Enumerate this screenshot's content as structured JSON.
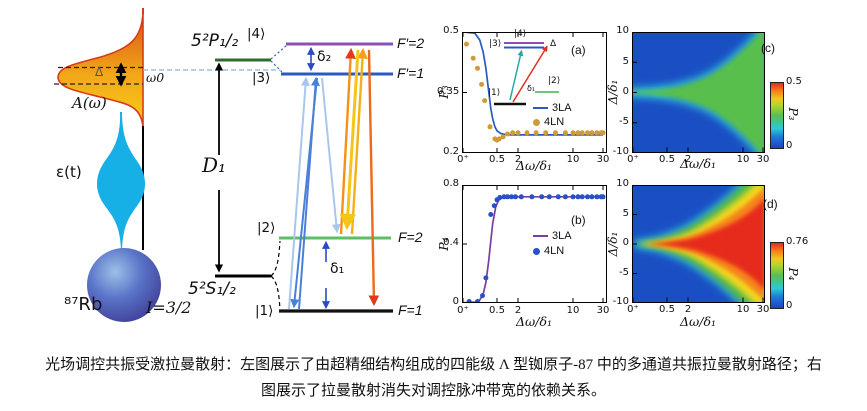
{
  "caption": {
    "line1": "光场调控共振受激拉曼散射：左图展示了由超精细结构组成的四能级 Λ 型铷原子-87 中的多通道共振拉曼散射路径；右",
    "line2": "图展示了拉曼散射消失对调控脉冲带宽的依赖关系。"
  },
  "left_diagram": {
    "spectrum_label": "A(ω)",
    "detuning_label": "Δ",
    "omega0_label": "ω0",
    "pulse_label": "ε(t)",
    "atom_label": "⁸⁷Rb",
    "nuclear_spin_label": "I=3/2",
    "upper_term_label": "5²P₁/₂",
    "lower_term_label": "5²S₁/₂",
    "d1_label": "D₁",
    "ket4": "|4⟩",
    "ket3": "|3⟩",
    "ket2": "|2⟩",
    "ket1": "|1⟩",
    "fprime2": "F′=2",
    "fprime1": "F′=1",
    "f2": "F=2",
    "f1": "F=1",
    "delta2_label": "δ₂",
    "delta1_label": "δ₁"
  },
  "panels": {
    "a": {
      "tag": "(a)",
      "ylabel": "P₃",
      "xlabel": "Δω/δ₁",
      "yticks": [
        "0.5",
        "0.35",
        "0.2"
      ],
      "xticks": [
        "0⁺",
        "0.5",
        "2",
        "10",
        "30"
      ],
      "legend": [
        {
          "label": "3LA"
        },
        {
          "label": "4LN"
        }
      ],
      "inset": {
        "ket4": "|4⟩",
        "ket3": "|3⟩",
        "ket2": "|2⟩",
        "ket1": "|1⟩",
        "delta1": "δ₁",
        "delta": "Δ"
      }
    },
    "b": {
      "tag": "(b)",
      "ylabel": "P₄",
      "xlabel": "Δω/δ₁",
      "yticks": [
        "0.8",
        "0.4",
        "0"
      ],
      "xticks": [
        "0⁺",
        "0.5",
        "2",
        "10",
        "30"
      ],
      "legend": [
        {
          "label": "3LA"
        },
        {
          "label": "4LN"
        }
      ]
    },
    "c": {
      "tag": "(c)",
      "ylabel": "Δ/δ₁",
      "xlabel": "Δω/δ₁",
      "yticks": [
        "10",
        "5",
        "0",
        "-5",
        "-10"
      ],
      "xticks": [
        "0⁺",
        "0.5",
        "2",
        "10",
        "30"
      ],
      "colorbar": {
        "max": "0.5",
        "min": "0",
        "label": "P₃"
      }
    },
    "d": {
      "tag": "(d)",
      "ylabel": "Δ/δ₁",
      "xlabel": "Δω/δ₁",
      "yticks": [
        "10",
        "5",
        "0",
        "-5",
        "-10"
      ],
      "xticks": [
        "0⁺",
        "0.5",
        "2",
        "10",
        "30"
      ],
      "colorbar": {
        "max": "0.76",
        "min": "0",
        "label": "P₄"
      }
    }
  },
  "chart_data": [
    {
      "type": "line+scatter",
      "panel": "(a)",
      "xlabel": "Δω/δ₁",
      "ylabel": "P₃",
      "xscale": "log-like",
      "xticks": [
        "0⁺",
        "0.5",
        "2",
        "10",
        "30"
      ],
      "ylim": [
        0.2,
        0.5
      ],
      "series": [
        {
          "name": "3LA",
          "kind": "line",
          "color": "#2b5abf",
          "points": [
            [
              0.03,
              0.5
            ],
            [
              0.08,
              0.497
            ],
            [
              0.12,
              0.48
            ],
            [
              0.16,
              0.45
            ],
            [
              0.2,
              0.41
            ],
            [
              0.25,
              0.355
            ],
            [
              0.3,
              0.31
            ],
            [
              0.35,
              0.285
            ],
            [
              0.42,
              0.265
            ],
            [
              0.5,
              0.255
            ],
            [
              0.65,
              0.248
            ],
            [
              0.85,
              0.246
            ],
            [
              1.2,
              0.245
            ],
            [
              2,
              0.245
            ],
            [
              4,
              0.245
            ],
            [
              8,
              0.245
            ],
            [
              15,
              0.245
            ],
            [
              30,
              0.245
            ]
          ]
        },
        {
          "name": "4LN",
          "kind": "scatter",
          "color": "#cf9b3a",
          "points": [
            [
              0.04,
              0.47
            ],
            [
              0.07,
              0.435
            ],
            [
              0.1,
              0.41
            ],
            [
              0.14,
              0.37
            ],
            [
              0.18,
              0.33
            ],
            [
              0.28,
              0.265
            ],
            [
              0.42,
              0.235
            ],
            [
              0.5,
              0.232
            ],
            [
              0.58,
              0.235
            ],
            [
              0.75,
              0.24
            ],
            [
              1,
              0.247
            ],
            [
              1.4,
              0.25
            ],
            [
              2,
              0.25
            ],
            [
              2.6,
              0.25
            ],
            [
              3.4,
              0.25
            ],
            [
              4.5,
              0.25
            ],
            [
              6,
              0.25
            ],
            [
              8,
              0.25
            ],
            [
              10,
              0.25
            ],
            [
              12,
              0.25
            ],
            [
              14,
              0.25
            ],
            [
              17,
              0.25
            ],
            [
              20,
              0.25
            ],
            [
              24,
              0.25
            ],
            [
              28,
              0.25
            ],
            [
              30,
              0.25
            ]
          ]
        }
      ]
    },
    {
      "type": "line+scatter",
      "panel": "(b)",
      "xlabel": "Δω/δ₁",
      "ylabel": "P₄",
      "xscale": "log-like",
      "xticks": [
        "0⁺",
        "0.5",
        "2",
        "10",
        "30"
      ],
      "ylim": [
        0,
        0.8
      ],
      "series": [
        {
          "name": "3LA",
          "kind": "line",
          "color": "#7a3ca0",
          "points": [
            [
              0.03,
              0.002
            ],
            [
              0.08,
              0.006
            ],
            [
              0.12,
              0.02
            ],
            [
              0.16,
              0.06
            ],
            [
              0.2,
              0.14
            ],
            [
              0.25,
              0.28
            ],
            [
              0.3,
              0.42
            ],
            [
              0.35,
              0.54
            ],
            [
              0.45,
              0.65
            ],
            [
              0.55,
              0.695
            ],
            [
              0.7,
              0.714
            ],
            [
              1,
              0.72
            ],
            [
              2,
              0.72
            ],
            [
              5,
              0.72
            ],
            [
              12,
              0.72
            ],
            [
              30,
              0.72
            ]
          ]
        },
        {
          "name": "4LN",
          "kind": "scatter",
          "color": "#2850c8",
          "points": [
            [
              0.05,
              0.01
            ],
            [
              0.1,
              0.01
            ],
            [
              0.15,
              0.05
            ],
            [
              0.2,
              0.17
            ],
            [
              0.3,
              0.6
            ],
            [
              0.4,
              0.66
            ],
            [
              0.5,
              0.7
            ],
            [
              0.6,
              0.715
            ],
            [
              0.8,
              0.72
            ],
            [
              1,
              0.72
            ],
            [
              1.3,
              0.72
            ],
            [
              1.7,
              0.72
            ],
            [
              2.2,
              0.72
            ],
            [
              3,
              0.72
            ],
            [
              4,
              0.72
            ],
            [
              5,
              0.72
            ],
            [
              6.5,
              0.72
            ],
            [
              8,
              0.72
            ],
            [
              10,
              0.72
            ],
            [
              12,
              0.72
            ],
            [
              14,
              0.72
            ],
            [
              17,
              0.72
            ],
            [
              20,
              0.72
            ],
            [
              24,
              0.72
            ],
            [
              28,
              0.72
            ],
            [
              30,
              0.72
            ]
          ]
        }
      ]
    },
    {
      "type": "heatmap",
      "panel": "(c)",
      "xlabel": "Δω/δ₁",
      "ylabel": "Δ/δ₁",
      "xticks": [
        "0⁺",
        "0.5",
        "2",
        "10",
        "30"
      ],
      "ylim": [
        -10,
        10
      ],
      "colorbar": {
        "label": "P₃",
        "min": 0,
        "max": 0.5
      },
      "pattern": "blue background (P₃≈0); green horn (P₃≈0.25) centered at Δ=0 opening toward large Δω with cyan fringe; thin yellow ridge (P₃≈0.5) along Δ=0 for Δω≲0.5",
      "horn_halfwidth_delta_vs_x": {
        "x": [
          0.1,
          0.5,
          2,
          10,
          30
        ],
        "delta": [
          0.05,
          0.3,
          1.2,
          7.5,
          10
        ]
      }
    },
    {
      "type": "heatmap",
      "panel": "(d)",
      "xlabel": "Δω/δ₁",
      "ylabel": "Δ/δ₁",
      "xticks": [
        "0⁺",
        "0.5",
        "2",
        "10",
        "30"
      ],
      "ylim": [
        -10,
        10
      ],
      "colorbar": {
        "label": "P₄",
        "min": 0,
        "max": 0.76
      },
      "pattern": "blue background (P₄≈0); red flame core (P₄≈0.76) centered at Δ=0 opening toward large Δω, fringed by orange, yellow, green and cyan bands",
      "red_core_halfwidth_delta_vs_x": {
        "x": [
          0.5,
          2,
          10,
          30
        ],
        "delta": [
          0.2,
          0.6,
          4.5,
          8.5
        ]
      }
    }
  ],
  "colors": {
    "curve_3la_a": "#2b5abf",
    "dots_4ln_a": "#cf9b3a",
    "curve_3la_b": "#7a3ca0",
    "dots_4ln_b": "#2850c8",
    "heat_blue": "#1a4fc4",
    "heat_green": "#58bf4e",
    "heat_red": "#e62a1a",
    "level_fprime2_purple": "#8a50b4",
    "level_fprime1_blue": "#2b5abf",
    "level_f2_green": "#5cbf63",
    "term_green": "#2f6b2f",
    "pulse_cyan": "#16b0e6",
    "spectrum_orange": "#e8641e"
  }
}
